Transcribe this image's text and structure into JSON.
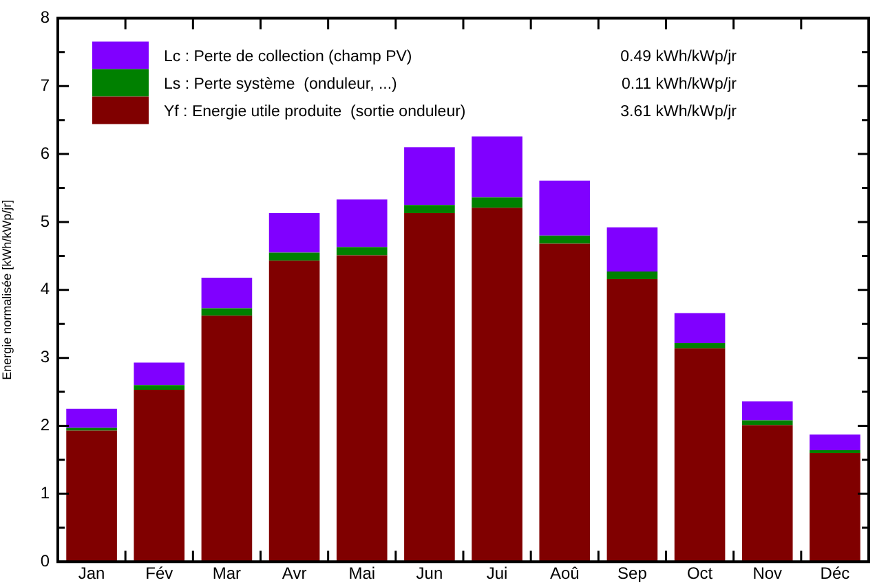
{
  "chart_data": {
    "type": "bar",
    "stacked": true,
    "ylabel": "Energie normalisée [kWh/kWp/jr]",
    "categories": [
      "Jan",
      "Fév",
      "Mar",
      "Avr",
      "Mai",
      "Jun",
      "Jui",
      "Aoû",
      "Sep",
      "Oct",
      "Nov",
      "Déc"
    ],
    "series": [
      {
        "name": "Yf : Energie utile produite  (sortie onduleur)",
        "color": "#800000",
        "values": [
          1.93,
          2.53,
          3.62,
          4.43,
          4.51,
          5.13,
          5.21,
          4.68,
          4.16,
          3.14,
          2.01,
          1.6
        ]
      },
      {
        "name": "Ls : Perte système  (onduleur, ...)",
        "color": "#008000",
        "values": [
          0.04,
          0.07,
          0.11,
          0.12,
          0.12,
          0.12,
          0.15,
          0.12,
          0.11,
          0.08,
          0.07,
          0.04
        ]
      },
      {
        "name": "Lc : Perte de collection (champ PV)",
        "color": "#8000ff",
        "values": [
          0.28,
          0.33,
          0.45,
          0.58,
          0.7,
          0.85,
          0.9,
          0.81,
          0.65,
          0.44,
          0.28,
          0.23
        ]
      }
    ],
    "annotations": [
      "0.49 kWh/kWp/jr",
      "0.11 kWh/kWp/jr",
      "3.61 kWh/kWp/jr"
    ],
    "ylim": [
      0,
      8
    ],
    "yticks": [
      0,
      {
        "value": 0.5,
        "label": null
      },
      1,
      {
        "value": 1.5,
        "label": null
      },
      2,
      {
        "value": 2.5,
        "label": null
      },
      3,
      {
        "value": 3.5,
        "label": null
      },
      4,
      {
        "value": 4.5,
        "label": null
      },
      5,
      {
        "value": 5.5,
        "label": null
      },
      6,
      {
        "value": 6.5,
        "label": null
      },
      7,
      {
        "value": 7.5,
        "label": null
      },
      8
    ],
    "legend": "top left",
    "grid": false
  }
}
